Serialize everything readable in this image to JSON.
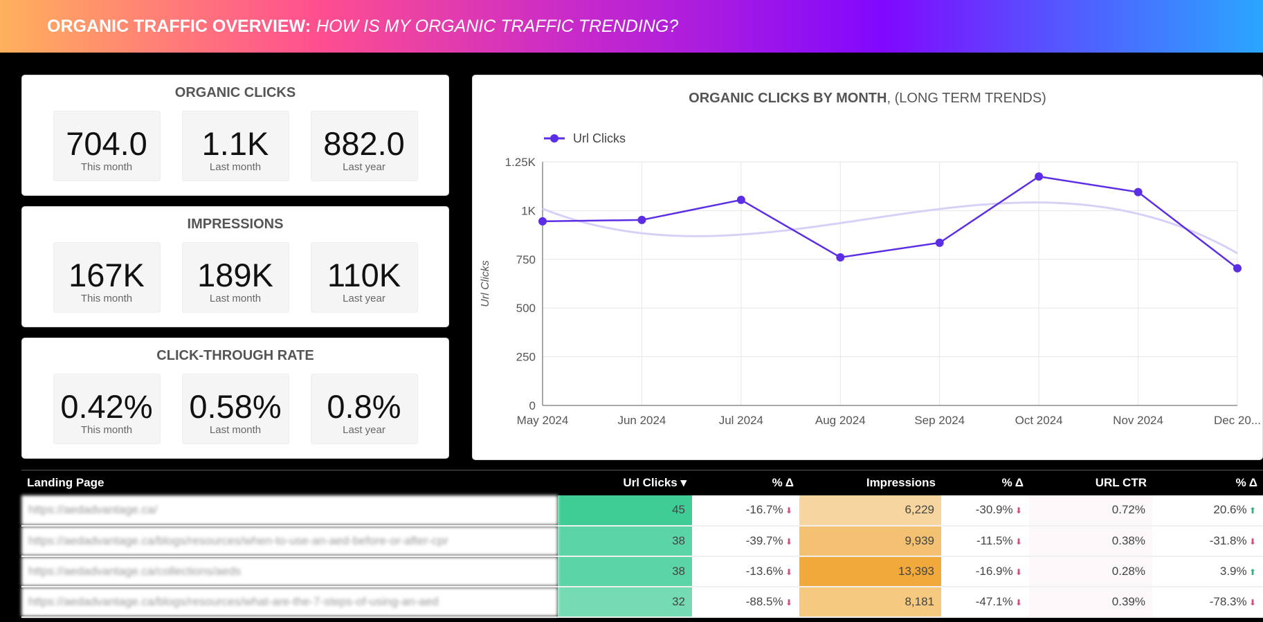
{
  "header": {
    "title": "ORGANIC TRAFFIC OVERVIEW:",
    "subtitle": "HOW IS MY ORGANIC TRAFFIC TRENDING?"
  },
  "kpi_cards": [
    {
      "title": "ORGANIC CLICKS",
      "items": [
        {
          "value": "704.0",
          "label": "This month"
        },
        {
          "value": "1.1K",
          "label": "Last month"
        },
        {
          "value": "882.0",
          "label": "Last year"
        }
      ]
    },
    {
      "title": "IMPRESSIONS",
      "items": [
        {
          "value": "167K",
          "label": "This month"
        },
        {
          "value": "189K",
          "label": "Last month"
        },
        {
          "value": "110K",
          "label": "Last year"
        }
      ]
    },
    {
      "title": "CLICK-THROUGH RATE",
      "items": [
        {
          "value": "0.42%",
          "label": "This month"
        },
        {
          "value": "0.58%",
          "label": "Last month"
        },
        {
          "value": "0.8%",
          "label": "Last year"
        }
      ]
    }
  ],
  "chart_data": {
    "type": "line",
    "title": "ORGANIC CLICKS BY MONTH",
    "subtitle": ", (LONG TERM TRENDS)",
    "legend": "Url Clicks",
    "ylabel": "Url Clicks",
    "categories": [
      "May 2024",
      "Jun 2024",
      "Jul 2024",
      "Aug 2024",
      "Sep 2024",
      "Oct 2024",
      "Nov 2024",
      "Dec 20..."
    ],
    "values": [
      945,
      952,
      1055,
      760,
      835,
      1175,
      1095,
      704
    ],
    "ylim": [
      0,
      1250
    ],
    "yticks": [
      {
        "v": 0,
        "t": "0"
      },
      {
        "v": 250,
        "t": "250"
      },
      {
        "v": 500,
        "t": "500"
      },
      {
        "v": 750,
        "t": "750"
      },
      {
        "v": 1000,
        "t": "1K"
      },
      {
        "v": 1250,
        "t": "1.25K"
      }
    ],
    "color": "#5b2ee6",
    "trend_color": "#d9d0f7"
  },
  "table": {
    "headers": [
      "Landing Page",
      "Url Clicks ▾",
      "% Δ",
      "Impressions",
      "% Δ",
      "URL CTR",
      "% Δ"
    ],
    "rows": [
      [
        "https://aedadvantage.ca/",
        "45",
        "-16.7%",
        "6,229",
        "-30.9%",
        "0.72%",
        "20.6%"
      ],
      [
        "https://aedadvantage.ca/blogs/resources/when-to-use-an-aed-before-or-after-cpr",
        "38",
        "-39.7%",
        "9,939",
        "-11.5%",
        "0.38%",
        "-31.8%"
      ],
      [
        "https://aedadvantage.ca/collections/aeds",
        "38",
        "-13.6%",
        "13,393",
        "-16.9%",
        "0.28%",
        "3.9%"
      ],
      [
        "https://aedadvantage.ca/blogs/resources/what-are-the-7-steps-of-using-an-aed",
        "32",
        "-88.5%",
        "8,181",
        "-47.1%",
        "0.39%",
        "-78.3%"
      ]
    ]
  }
}
